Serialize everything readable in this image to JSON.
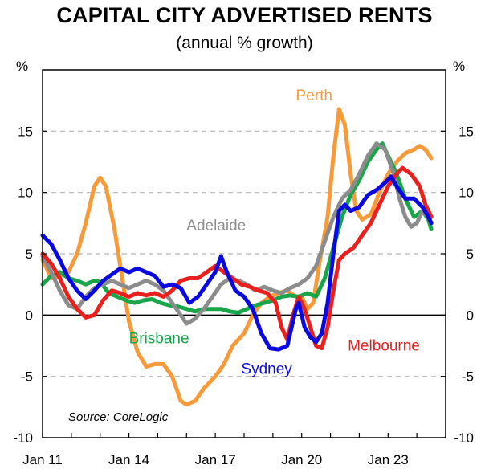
{
  "chart_data": {
    "type": "line",
    "title": "CAPITAL CITY ADVERTISED RENTS",
    "subtitle": "(annual % growth)",
    "ylabel_left": "%",
    "ylabel_right": "%",
    "ylim": [
      -10,
      20
    ],
    "yticks": [
      -10,
      -5,
      0,
      5,
      10,
      15
    ],
    "gridlines_at": [
      -5,
      5,
      10,
      15
    ],
    "xlim": [
      2011.0,
      2025.0
    ],
    "xticks": [
      {
        "value": 2011.0,
        "label": "Jan 11"
      },
      {
        "value": 2014.0,
        "label": "Jan 14"
      },
      {
        "value": 2017.0,
        "label": "Jan 17"
      },
      {
        "value": 2020.0,
        "label": "Jan 20"
      },
      {
        "value": 2023.0,
        "label": "Jan 23"
      }
    ],
    "source": "Source: CoreLogic",
    "series": [
      {
        "name": "Perth",
        "color": "#F79A3A",
        "points": [
          [
            2011.0,
            4.5
          ],
          [
            2011.3,
            3.0
          ],
          [
            2011.6,
            3.2
          ],
          [
            2011.9,
            3.5
          ],
          [
            2012.2,
            5.0
          ],
          [
            2012.5,
            7.5
          ],
          [
            2012.8,
            10.5
          ],
          [
            2013.0,
            11.2
          ],
          [
            2013.2,
            10.5
          ],
          [
            2013.5,
            7.0
          ],
          [
            2013.8,
            2.5
          ],
          [
            2014.0,
            -0.5
          ],
          [
            2014.3,
            -3.0
          ],
          [
            2014.6,
            -4.2
          ],
          [
            2014.9,
            -4.0
          ],
          [
            2015.2,
            -4.0
          ],
          [
            2015.5,
            -5.0
          ],
          [
            2015.8,
            -7.0
          ],
          [
            2016.0,
            -7.3
          ],
          [
            2016.3,
            -7.0
          ],
          [
            2016.6,
            -6.0
          ],
          [
            2017.0,
            -5.0
          ],
          [
            2017.3,
            -4.0
          ],
          [
            2017.6,
            -2.5
          ],
          [
            2018.0,
            -1.5
          ],
          [
            2018.3,
            0.0
          ],
          [
            2018.6,
            1.0
          ],
          [
            2018.9,
            1.5
          ],
          [
            2019.2,
            1.8
          ],
          [
            2019.5,
            2.0
          ],
          [
            2019.8,
            1.5
          ],
          [
            2020.0,
            1.5
          ],
          [
            2020.2,
            0.5
          ],
          [
            2020.4,
            1.0
          ],
          [
            2020.6,
            4.0
          ],
          [
            2020.9,
            8.0
          ],
          [
            2021.1,
            13.0
          ],
          [
            2021.3,
            16.8
          ],
          [
            2021.5,
            15.5
          ],
          [
            2021.7,
            11.5
          ],
          [
            2021.9,
            8.5
          ],
          [
            2022.1,
            7.8
          ],
          [
            2022.4,
            8.2
          ],
          [
            2022.7,
            10.0
          ],
          [
            2023.0,
            11.5
          ],
          [
            2023.3,
            12.5
          ],
          [
            2023.6,
            13.2
          ],
          [
            2023.9,
            13.5
          ],
          [
            2024.1,
            13.8
          ],
          [
            2024.3,
            13.5
          ],
          [
            2024.5,
            12.8
          ]
        ]
      },
      {
        "name": "Brisbane",
        "color": "#19A64B",
        "points": [
          [
            2011.0,
            2.5
          ],
          [
            2011.3,
            3.2
          ],
          [
            2011.6,
            3.5
          ],
          [
            2011.9,
            3.0
          ],
          [
            2012.2,
            2.8
          ],
          [
            2012.5,
            2.5
          ],
          [
            2012.8,
            2.8
          ],
          [
            2013.0,
            2.7
          ],
          [
            2013.3,
            1.8
          ],
          [
            2013.6,
            1.5
          ],
          [
            2013.9,
            1.2
          ],
          [
            2014.2,
            1.0
          ],
          [
            2014.5,
            1.2
          ],
          [
            2014.8,
            1.3
          ],
          [
            2015.1,
            1.0
          ],
          [
            2015.4,
            0.8
          ],
          [
            2015.7,
            0.7
          ],
          [
            2016.0,
            0.5
          ],
          [
            2016.3,
            0.3
          ],
          [
            2016.6,
            0.5
          ],
          [
            2016.9,
            0.5
          ],
          [
            2017.2,
            0.5
          ],
          [
            2017.5,
            0.3
          ],
          [
            2017.8,
            0.2
          ],
          [
            2018.1,
            0.5
          ],
          [
            2018.4,
            0.8
          ],
          [
            2018.7,
            1.0
          ],
          [
            2019.0,
            1.2
          ],
          [
            2019.3,
            1.5
          ],
          [
            2019.6,
            1.6
          ],
          [
            2019.9,
            1.5
          ],
          [
            2020.2,
            1.8
          ],
          [
            2020.5,
            1.5
          ],
          [
            2020.8,
            3.0
          ],
          [
            2021.1,
            5.5
          ],
          [
            2021.4,
            8.0
          ],
          [
            2021.7,
            9.8
          ],
          [
            2022.0,
            11.0
          ],
          [
            2022.3,
            12.5
          ],
          [
            2022.6,
            13.5
          ],
          [
            2022.8,
            14.0
          ],
          [
            2023.0,
            13.0
          ],
          [
            2023.3,
            11.5
          ],
          [
            2023.6,
            9.5
          ],
          [
            2023.9,
            8.0
          ],
          [
            2024.2,
            8.5
          ],
          [
            2024.4,
            7.8
          ],
          [
            2024.5,
            7.0
          ]
        ]
      },
      {
        "name": "Adelaide",
        "color": "#8C8C8C",
        "points": [
          [
            2011.0,
            4.8
          ],
          [
            2011.3,
            3.5
          ],
          [
            2011.6,
            2.0
          ],
          [
            2011.9,
            0.8
          ],
          [
            2012.2,
            0.5
          ],
          [
            2012.5,
            1.5
          ],
          [
            2012.8,
            2.2
          ],
          [
            2013.1,
            2.5
          ],
          [
            2013.4,
            2.8
          ],
          [
            2013.7,
            2.5
          ],
          [
            2014.0,
            2.2
          ],
          [
            2014.3,
            2.5
          ],
          [
            2014.6,
            2.8
          ],
          [
            2014.9,
            2.5
          ],
          [
            2015.2,
            2.0
          ],
          [
            2015.5,
            1.0
          ],
          [
            2015.8,
            0.0
          ],
          [
            2016.0,
            -0.7
          ],
          [
            2016.3,
            -0.3
          ],
          [
            2016.6,
            0.5
          ],
          [
            2016.9,
            1.5
          ],
          [
            2017.2,
            2.5
          ],
          [
            2017.5,
            3.0
          ],
          [
            2017.8,
            2.8
          ],
          [
            2018.1,
            2.5
          ],
          [
            2018.4,
            2.0
          ],
          [
            2018.7,
            2.3
          ],
          [
            2019.0,
            2.0
          ],
          [
            2019.3,
            1.8
          ],
          [
            2019.6,
            2.2
          ],
          [
            2019.9,
            2.5
          ],
          [
            2020.2,
            3.0
          ],
          [
            2020.5,
            4.0
          ],
          [
            2020.8,
            6.0
          ],
          [
            2021.1,
            8.0
          ],
          [
            2021.4,
            9.5
          ],
          [
            2021.7,
            10.2
          ],
          [
            2022.0,
            11.5
          ],
          [
            2022.3,
            13.0
          ],
          [
            2022.6,
            14.0
          ],
          [
            2022.9,
            13.5
          ],
          [
            2023.2,
            11.5
          ],
          [
            2023.4,
            9.5
          ],
          [
            2023.6,
            8.0
          ],
          [
            2023.8,
            7.2
          ],
          [
            2024.0,
            7.5
          ],
          [
            2024.2,
            8.5
          ],
          [
            2024.4,
            8.0
          ],
          [
            2024.5,
            7.5
          ]
        ]
      },
      {
        "name": "Melbourne",
        "color": "#E8201E",
        "points": [
          [
            2011.0,
            5.0
          ],
          [
            2011.3,
            4.2
          ],
          [
            2011.6,
            3.0
          ],
          [
            2011.9,
            1.5
          ],
          [
            2012.2,
            0.5
          ],
          [
            2012.5,
            -0.2
          ],
          [
            2012.8,
            0.0
          ],
          [
            2013.1,
            1.2
          ],
          [
            2013.4,
            2.0
          ],
          [
            2013.7,
            1.8
          ],
          [
            2014.0,
            1.5
          ],
          [
            2014.3,
            1.8
          ],
          [
            2014.6,
            1.6
          ],
          [
            2014.9,
            1.8
          ],
          [
            2015.2,
            1.5
          ],
          [
            2015.5,
            2.0
          ],
          [
            2015.8,
            2.8
          ],
          [
            2016.1,
            3.0
          ],
          [
            2016.4,
            3.0
          ],
          [
            2016.7,
            3.5
          ],
          [
            2017.0,
            4.0
          ],
          [
            2017.3,
            3.5
          ],
          [
            2017.6,
            3.0
          ],
          [
            2017.9,
            2.5
          ],
          [
            2018.2,
            2.3
          ],
          [
            2018.5,
            2.0
          ],
          [
            2018.8,
            1.8
          ],
          [
            2019.1,
            1.0
          ],
          [
            2019.3,
            -1.0
          ],
          [
            2019.5,
            -2.0
          ],
          [
            2019.7,
            0.0
          ],
          [
            2019.9,
            1.5
          ],
          [
            2020.1,
            0.5
          ],
          [
            2020.3,
            -1.0
          ],
          [
            2020.5,
            -2.5
          ],
          [
            2020.7,
            -2.7
          ],
          [
            2020.9,
            -1.0
          ],
          [
            2021.1,
            2.0
          ],
          [
            2021.3,
            4.5
          ],
          [
            2021.5,
            5.0
          ],
          [
            2021.8,
            5.5
          ],
          [
            2022.1,
            6.5
          ],
          [
            2022.4,
            7.5
          ],
          [
            2022.7,
            9.0
          ],
          [
            2023.0,
            10.5
          ],
          [
            2023.3,
            11.5
          ],
          [
            2023.5,
            12.0
          ],
          [
            2023.8,
            11.5
          ],
          [
            2024.1,
            10.5
          ],
          [
            2024.3,
            9.0
          ],
          [
            2024.5,
            8.0
          ]
        ]
      },
      {
        "name": "Sydney",
        "color": "#0A0AE0",
        "points": [
          [
            2011.0,
            6.5
          ],
          [
            2011.3,
            5.8
          ],
          [
            2011.6,
            4.5
          ],
          [
            2011.9,
            3.0
          ],
          [
            2012.2,
            2.0
          ],
          [
            2012.5,
            1.3
          ],
          [
            2012.8,
            2.0
          ],
          [
            2013.1,
            2.8
          ],
          [
            2013.4,
            3.3
          ],
          [
            2013.7,
            3.8
          ],
          [
            2014.0,
            3.5
          ],
          [
            2014.3,
            3.8
          ],
          [
            2014.6,
            3.5
          ],
          [
            2014.9,
            3.2
          ],
          [
            2015.2,
            2.3
          ],
          [
            2015.5,
            2.5
          ],
          [
            2015.8,
            2.2
          ],
          [
            2016.1,
            1.0
          ],
          [
            2016.4,
            1.5
          ],
          [
            2016.7,
            2.5
          ],
          [
            2017.0,
            3.5
          ],
          [
            2017.2,
            4.8
          ],
          [
            2017.4,
            3.5
          ],
          [
            2017.7,
            2.0
          ],
          [
            2018.0,
            1.5
          ],
          [
            2018.3,
            0.5
          ],
          [
            2018.6,
            -1.5
          ],
          [
            2018.9,
            -2.7
          ],
          [
            2019.2,
            -2.8
          ],
          [
            2019.5,
            -2.5
          ],
          [
            2019.8,
            0.5
          ],
          [
            2019.9,
            1.0
          ],
          [
            2020.1,
            -1.0
          ],
          [
            2020.3,
            -1.8
          ],
          [
            2020.5,
            -2.2
          ],
          [
            2020.7,
            -1.5
          ],
          [
            2020.9,
            1.0
          ],
          [
            2021.1,
            5.0
          ],
          [
            2021.3,
            8.5
          ],
          [
            2021.5,
            9.0
          ],
          [
            2021.7,
            8.5
          ],
          [
            2022.0,
            8.8
          ],
          [
            2022.3,
            9.8
          ],
          [
            2022.6,
            10.2
          ],
          [
            2022.9,
            10.8
          ],
          [
            2023.1,
            11.3
          ],
          [
            2023.3,
            10.5
          ],
          [
            2023.6,
            9.5
          ],
          [
            2023.9,
            9.5
          ],
          [
            2024.2,
            8.8
          ],
          [
            2024.4,
            8.0
          ],
          [
            2024.5,
            7.5
          ]
        ]
      }
    ],
    "annotations": [
      {
        "text": "Perth",
        "color": "#F79A3A",
        "x": 2019.8,
        "y": 17.5
      },
      {
        "text": "Adelaide",
        "color": "#8C8C8C",
        "x": 2016.0,
        "y": 6.9
      },
      {
        "text": "Brisbane",
        "color": "#19A64B",
        "x": 2014.0,
        "y": -2.3
      },
      {
        "text": "Sydney",
        "color": "#0A0AE0",
        "x": 2017.9,
        "y": -4.8
      },
      {
        "text": "Melbourne",
        "color": "#E8201E",
        "x": 2021.6,
        "y": -2.9
      }
    ]
  }
}
